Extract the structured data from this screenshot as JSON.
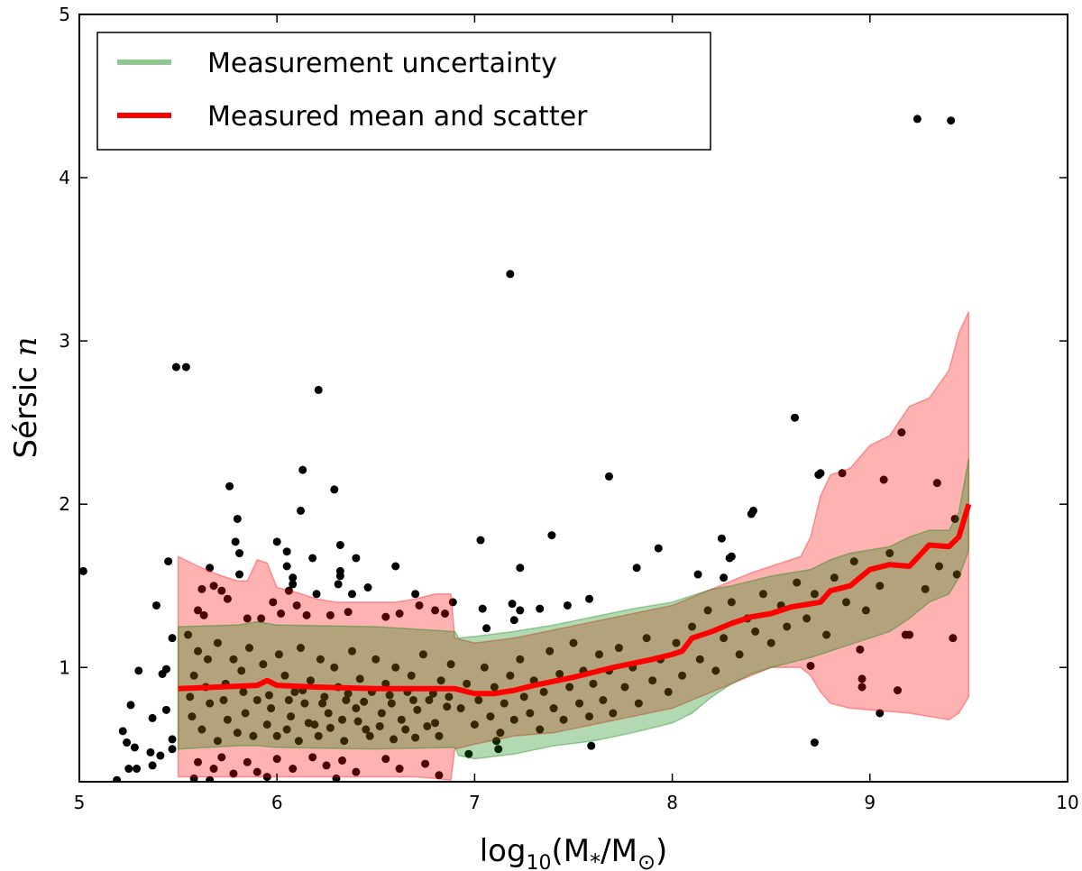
{
  "chart_data": {
    "type": "scatter",
    "xlabel": "log10(M*/M⊙)",
    "xlabel_parts": {
      "base": "log",
      "sub": "10",
      "open": "(M",
      "star": "*",
      "slash": "/M",
      "sun": "⊙",
      "close": ")"
    },
    "ylabel": "Sérsic n",
    "ylabel_parts": {
      "text": "Sérsic ",
      "var": "n"
    },
    "xlim": [
      5,
      10
    ],
    "ylim": [
      0.3,
      5
    ],
    "xticks": [
      5,
      6,
      7,
      8,
      9,
      10
    ],
    "yticks": [
      1,
      2,
      3,
      4,
      5
    ],
    "grid": false,
    "legend": {
      "placement": "top-left",
      "entries": [
        {
          "label": "Measurement uncertainty",
          "color": "#8fc98f"
        },
        {
          "label": "Measured mean and scatter",
          "color": "#ff0000"
        }
      ]
    },
    "colors": {
      "points": "#000000",
      "scatter_band": "#ff0000",
      "uncertainty_band": "#008000",
      "mean_line": "#ff0000"
    },
    "scatter_band": {
      "x": [
        5.5,
        5.6,
        5.7,
        5.8,
        5.85,
        5.9,
        5.95,
        6.0,
        6.1,
        6.2,
        6.3,
        6.4,
        6.5,
        6.6,
        6.7,
        6.8,
        6.88,
        6.9,
        7.0,
        7.2,
        7.4,
        7.6,
        7.8,
        8.0,
        8.2,
        8.3,
        8.4,
        8.5,
        8.6,
        8.65,
        8.7,
        8.75,
        8.8,
        8.9,
        9.0,
        9.1,
        9.2,
        9.3,
        9.4,
        9.45,
        9.5
      ],
      "upper": [
        1.68,
        1.62,
        1.57,
        1.53,
        1.53,
        1.66,
        1.64,
        1.49,
        1.46,
        1.42,
        1.4,
        1.4,
        1.4,
        1.4,
        1.42,
        1.45,
        1.45,
        1.18,
        1.15,
        1.18,
        1.23,
        1.28,
        1.33,
        1.38,
        1.48,
        1.53,
        1.58,
        1.62,
        1.66,
        1.68,
        1.8,
        2.05,
        2.18,
        2.22,
        2.36,
        2.42,
        2.6,
        2.65,
        2.82,
        3.05,
        3.18
      ],
      "lower": [
        0.33,
        0.33,
        0.33,
        0.33,
        0.33,
        0.33,
        0.33,
        0.33,
        0.33,
        0.33,
        0.33,
        0.33,
        0.33,
        0.33,
        0.33,
        0.32,
        0.31,
        0.5,
        0.53,
        0.58,
        0.6,
        0.65,
        0.7,
        0.75,
        0.85,
        0.9,
        0.95,
        1.0,
        1.0,
        1.0,
        0.95,
        0.85,
        0.78,
        0.75,
        0.74,
        0.73,
        0.72,
        0.7,
        0.68,
        0.72,
        0.82
      ]
    },
    "uncertainty_band": {
      "x": [
        5.5,
        5.8,
        5.9,
        6.0,
        6.5,
        6.9,
        6.92,
        7.0,
        7.2,
        7.4,
        7.6,
        7.8,
        8.0,
        8.1,
        8.2,
        8.3,
        8.4,
        8.5,
        8.6,
        8.7,
        8.8,
        8.9,
        9.0,
        9.1,
        9.2,
        9.3,
        9.4,
        9.45,
        9.5
      ],
      "upper": [
        1.25,
        1.26,
        1.28,
        1.26,
        1.25,
        1.22,
        1.18,
        1.19,
        1.22,
        1.26,
        1.31,
        1.36,
        1.4,
        1.44,
        1.48,
        1.5,
        1.53,
        1.56,
        1.58,
        1.6,
        1.66,
        1.7,
        1.72,
        1.74,
        1.8,
        1.84,
        1.84,
        1.95,
        2.28
      ],
      "lower": [
        0.5,
        0.52,
        0.52,
        0.51,
        0.5,
        0.51,
        0.46,
        0.44,
        0.47,
        0.52,
        0.55,
        0.6,
        0.66,
        0.72,
        0.82,
        0.9,
        0.96,
        1.0,
        1.03,
        1.06,
        1.1,
        1.14,
        1.18,
        1.22,
        1.3,
        1.4,
        1.45,
        1.55,
        1.72
      ]
    },
    "mean_line": {
      "x": [
        5.5,
        5.7,
        5.9,
        5.95,
        6.0,
        6.2,
        6.5,
        6.7,
        6.9,
        7.0,
        7.1,
        7.2,
        7.3,
        7.5,
        7.7,
        7.9,
        8.0,
        8.05,
        8.1,
        8.2,
        8.3,
        8.4,
        8.5,
        8.6,
        8.65,
        8.75,
        8.8,
        8.9,
        9.0,
        9.1,
        9.2,
        9.3,
        9.4,
        9.45,
        9.5
      ],
      "y": [
        0.87,
        0.88,
        0.89,
        0.92,
        0.89,
        0.88,
        0.87,
        0.87,
        0.87,
        0.84,
        0.84,
        0.86,
        0.89,
        0.94,
        1.0,
        1.05,
        1.08,
        1.1,
        1.18,
        1.22,
        1.27,
        1.31,
        1.33,
        1.37,
        1.38,
        1.4,
        1.47,
        1.5,
        1.6,
        1.63,
        1.62,
        1.75,
        1.74,
        1.8,
        2.0
      ]
    },
    "points": [
      [
        5.02,
        1.59
      ],
      [
        5.45,
        1.65
      ],
      [
        5.39,
        1.38
      ],
      [
        5.3,
        0.98
      ],
      [
        5.26,
        0.77
      ],
      [
        5.22,
        0.61
      ],
      [
        5.24,
        0.54
      ],
      [
        5.28,
        0.51
      ],
      [
        5.37,
        0.69
      ],
      [
        5.36,
        0.48
      ],
      [
        5.25,
        0.38
      ],
      [
        5.29,
        0.38
      ],
      [
        5.41,
        0.46
      ],
      [
        5.37,
        0.4
      ],
      [
        5.19,
        0.31
      ],
      [
        5.42,
        0.96
      ],
      [
        5.44,
        0.99
      ],
      [
        5.44,
        0.74
      ],
      [
        5.47,
        1.18
      ],
      [
        5.47,
        0.56
      ],
      [
        5.47,
        0.5
      ],
      [
        5.49,
        2.84
      ],
      [
        5.54,
        2.84
      ],
      [
        6.21,
        2.7
      ],
      [
        7.18,
        3.41
      ],
      [
        9.24,
        4.36
      ],
      [
        9.41,
        4.35
      ],
      [
        5.76,
        2.11
      ],
      [
        6.13,
        2.21
      ],
      [
        6.29,
        2.09
      ],
      [
        6.12,
        1.96
      ],
      [
        5.8,
        1.91
      ],
      [
        5.79,
        1.77
      ],
      [
        5.81,
        1.7
      ],
      [
        5.81,
        1.57
      ],
      [
        5.66,
        1.61
      ],
      [
        6.0,
        1.77
      ],
      [
        6.05,
        1.71
      ],
      [
        6.05,
        1.62
      ],
      [
        6.08,
        1.55
      ],
      [
        6.08,
        1.51
      ],
      [
        6.06,
        1.47
      ],
      [
        6.18,
        1.67
      ],
      [
        6.32,
        1.75
      ],
      [
        6.32,
        1.59
      ],
      [
        6.32,
        1.56
      ],
      [
        6.31,
        1.51
      ],
      [
        6.4,
        1.67
      ],
      [
        6.38,
        1.45
      ],
      [
        6.46,
        1.49
      ],
      [
        6.6,
        1.62
      ],
      [
        7.03,
        1.78
      ],
      [
        7.04,
        1.36
      ],
      [
        6.89,
        1.4
      ],
      [
        6.7,
        1.45
      ],
      [
        6.2,
        1.45
      ],
      [
        7.68,
        2.17
      ],
      [
        8.74,
        2.18
      ],
      [
        8.4,
        1.94
      ],
      [
        7.39,
        1.81
      ],
      [
        7.93,
        1.73
      ],
      [
        7.23,
        1.61
      ],
      [
        7.82,
        1.61
      ],
      [
        8.25,
        1.79
      ],
      [
        8.29,
        1.67
      ],
      [
        8.3,
        1.68
      ],
      [
        8.13,
        1.57
      ],
      [
        8.26,
        1.55
      ],
      [
        7.19,
        1.39
      ],
      [
        7.23,
        1.35
      ],
      [
        7.2,
        1.29
      ],
      [
        7.33,
        1.36
      ],
      [
        7.47,
        1.38
      ],
      [
        7.58,
        1.42
      ],
      [
        7.06,
        1.24
      ],
      [
        7.59,
        0.52
      ],
      [
        8.72,
        0.54
      ],
      [
        6.97,
        0.47
      ],
      [
        7.12,
        0.5
      ],
      [
        7.11,
        0.55
      ],
      [
        8.62,
        2.53
      ],
      [
        9.16,
        2.44
      ],
      [
        8.75,
        2.19
      ],
      [
        8.86,
        2.19
      ],
      [
        9.07,
        2.15
      ],
      [
        9.34,
        2.13
      ],
      [
        8.41,
        1.96
      ],
      [
        9.43,
        1.91
      ],
      [
        9.44,
        1.57
      ],
      [
        9.18,
        1.2
      ],
      [
        9.2,
        1.2
      ],
      [
        9.42,
        1.18
      ],
      [
        8.95,
        1.11
      ],
      [
        8.7,
        1.01
      ],
      [
        8.96,
        0.93
      ],
      [
        8.96,
        0.88
      ],
      [
        9.14,
        0.86
      ],
      [
        9.05,
        0.72
      ],
      [
        5.62,
        1.48
      ],
      [
        5.68,
        1.5
      ],
      [
        5.72,
        1.47
      ],
      [
        5.75,
        1.42
      ],
      [
        5.6,
        1.35
      ],
      [
        5.63,
        1.32
      ],
      [
        5.85,
        1.3
      ],
      [
        5.92,
        1.3
      ],
      [
        5.98,
        1.4
      ],
      [
        6.02,
        1.33
      ],
      [
        6.1,
        1.38
      ],
      [
        6.15,
        1.32
      ],
      [
        6.27,
        1.32
      ],
      [
        6.36,
        1.34
      ],
      [
        6.55,
        1.31
      ],
      [
        6.62,
        1.33
      ],
      [
        6.8,
        1.35
      ],
      [
        6.85,
        1.33
      ],
      [
        6.72,
        1.38
      ],
      [
        5.55,
        1.2
      ],
      [
        5.6,
        1.1
      ],
      [
        5.58,
        0.95
      ],
      [
        5.65,
        1.05
      ],
      [
        5.7,
        1.15
      ],
      [
        5.74,
        0.9
      ],
      [
        5.78,
        1.05
      ],
      [
        5.82,
        0.98
      ],
      [
        5.86,
        1.12
      ],
      [
        5.9,
        0.8
      ],
      [
        5.93,
        1.02
      ],
      [
        5.97,
        0.75
      ],
      [
        6.01,
        1.08
      ],
      [
        6.04,
        0.95
      ],
      [
        6.07,
        0.7
      ],
      [
        6.09,
        0.85
      ],
      [
        6.12,
        1.12
      ],
      [
        6.14,
        0.78
      ],
      [
        6.17,
        0.92
      ],
      [
        6.19,
        0.65
      ],
      [
        6.22,
        1.05
      ],
      [
        6.24,
        0.82
      ],
      [
        6.26,
        0.72
      ],
      [
        6.29,
        1.0
      ],
      [
        6.31,
        0.88
      ],
      [
        6.33,
        0.68
      ],
      [
        6.35,
        0.8
      ],
      [
        6.38,
        1.1
      ],
      [
        6.4,
        0.75
      ],
      [
        6.42,
        0.93
      ],
      [
        6.45,
        0.62
      ],
      [
        6.48,
        0.85
      ],
      [
        6.5,
        1.05
      ],
      [
        6.53,
        0.72
      ],
      [
        6.55,
        0.9
      ],
      [
        6.58,
        0.78
      ],
      [
        6.6,
        1.0
      ],
      [
        6.63,
        0.68
      ],
      [
        6.66,
        0.85
      ],
      [
        6.68,
        0.95
      ],
      [
        6.71,
        0.74
      ],
      [
        6.74,
        1.08
      ],
      [
        6.77,
        0.8
      ],
      [
        6.8,
        0.66
      ],
      [
        6.83,
        0.92
      ],
      [
        6.86,
        0.76
      ],
      [
        6.88,
        1.02
      ],
      [
        5.57,
        0.7
      ],
      [
        5.62,
        0.62
      ],
      [
        5.66,
        0.78
      ],
      [
        5.7,
        0.55
      ],
      [
        5.75,
        0.68
      ],
      [
        5.8,
        0.6
      ],
      [
        5.84,
        0.72
      ],
      [
        5.88,
        0.58
      ],
      [
        5.95,
        0.65
      ],
      [
        6.0,
        0.58
      ],
      [
        6.05,
        0.62
      ],
      [
        6.11,
        0.55
      ],
      [
        6.16,
        0.66
      ],
      [
        6.21,
        0.58
      ],
      [
        6.27,
        0.63
      ],
      [
        6.34,
        0.55
      ],
      [
        6.41,
        0.67
      ],
      [
        6.47,
        0.58
      ],
      [
        6.52,
        0.64
      ],
      [
        6.59,
        0.56
      ],
      [
        6.65,
        0.62
      ],
      [
        6.7,
        0.57
      ],
      [
        6.76,
        0.64
      ],
      [
        6.82,
        0.58
      ],
      [
        5.6,
        0.42
      ],
      [
        5.68,
        0.38
      ],
      [
        5.72,
        0.45
      ],
      [
        5.78,
        0.35
      ],
      [
        5.85,
        0.42
      ],
      [
        5.9,
        0.36
      ],
      [
        6.0,
        0.44
      ],
      [
        6.08,
        0.38
      ],
      [
        6.18,
        0.45
      ],
      [
        6.25,
        0.4
      ],
      [
        6.33,
        0.43
      ],
      [
        6.4,
        0.36
      ],
      [
        6.55,
        0.44
      ],
      [
        6.62,
        0.38
      ],
      [
        6.75,
        0.41
      ],
      [
        6.82,
        0.34
      ],
      [
        5.58,
        0.32
      ],
      [
        5.66,
        0.31
      ],
      [
        5.95,
        0.33
      ],
      [
        6.3,
        0.32
      ],
      [
        5.56,
        0.82
      ],
      [
        5.64,
        0.88
      ],
      [
        5.73,
        0.8
      ],
      [
        5.83,
        0.85
      ],
      [
        5.96,
        0.83
      ],
      [
        6.06,
        0.8
      ],
      [
        6.13,
        0.86
      ],
      [
        6.23,
        0.78
      ],
      [
        6.36,
        0.84
      ],
      [
        6.44,
        0.79
      ],
      [
        6.57,
        0.83
      ],
      [
        6.69,
        0.8
      ],
      [
        6.79,
        0.84
      ],
      [
        6.87,
        0.82
      ],
      [
        6.93,
        0.75
      ],
      [
        6.96,
        0.9
      ],
      [
        7.0,
        0.65
      ],
      [
        7.02,
        0.8
      ],
      [
        7.05,
        1.0
      ],
      [
        7.08,
        0.7
      ],
      [
        7.1,
        0.88
      ],
      [
        7.13,
        0.6
      ],
      [
        7.15,
        0.78
      ],
      [
        7.18,
        0.95
      ],
      [
        7.2,
        0.68
      ],
      [
        7.23,
        1.05
      ],
      [
        7.25,
        0.82
      ],
      [
        7.28,
        0.72
      ],
      [
        7.3,
        0.92
      ],
      [
        7.33,
        0.62
      ],
      [
        7.35,
        0.85
      ],
      [
        7.38,
        1.1
      ],
      [
        7.4,
        0.75
      ],
      [
        7.43,
        0.96
      ],
      [
        7.45,
        0.68
      ],
      [
        7.48,
        0.88
      ],
      [
        7.5,
        1.15
      ],
      [
        7.53,
        0.78
      ],
      [
        7.55,
        0.98
      ],
      [
        7.58,
        0.7
      ],
      [
        7.6,
        0.9
      ],
      [
        7.63,
        1.08
      ],
      [
        7.65,
        0.8
      ],
      [
        7.68,
        0.98
      ],
      [
        7.7,
        0.72
      ],
      [
        7.73,
        1.12
      ],
      [
        7.76,
        0.88
      ],
      [
        7.8,
        1.0
      ],
      [
        7.83,
        0.78
      ],
      [
        7.87,
        1.18
      ],
      [
        7.9,
        0.92
      ],
      [
        7.94,
        1.05
      ],
      [
        7.98,
        0.85
      ],
      [
        8.02,
        1.15
      ],
      [
        8.05,
        0.95
      ],
      [
        8.1,
        1.25
      ],
      [
        8.14,
        1.05
      ],
      [
        8.18,
        1.35
      ],
      [
        8.22,
        0.98
      ],
      [
        8.26,
        1.18
      ],
      [
        8.3,
        1.4
      ],
      [
        8.34,
        1.08
      ],
      [
        8.38,
        1.3
      ],
      [
        8.42,
        1.22
      ],
      [
        8.46,
        1.45
      ],
      [
        8.5,
        1.15
      ],
      [
        8.55,
        1.38
      ],
      [
        8.58,
        1.25
      ],
      [
        8.63,
        1.52
      ],
      [
        8.68,
        1.3
      ],
      [
        8.72,
        1.45
      ],
      [
        8.78,
        1.2
      ],
      [
        8.82,
        1.55
      ],
      [
        8.88,
        1.4
      ],
      [
        8.92,
        1.65
      ],
      [
        8.98,
        1.35
      ],
      [
        9.05,
        1.5
      ],
      [
        9.1,
        1.7
      ],
      [
        9.28,
        1.48
      ],
      [
        9.35,
        1.62
      ]
    ]
  }
}
